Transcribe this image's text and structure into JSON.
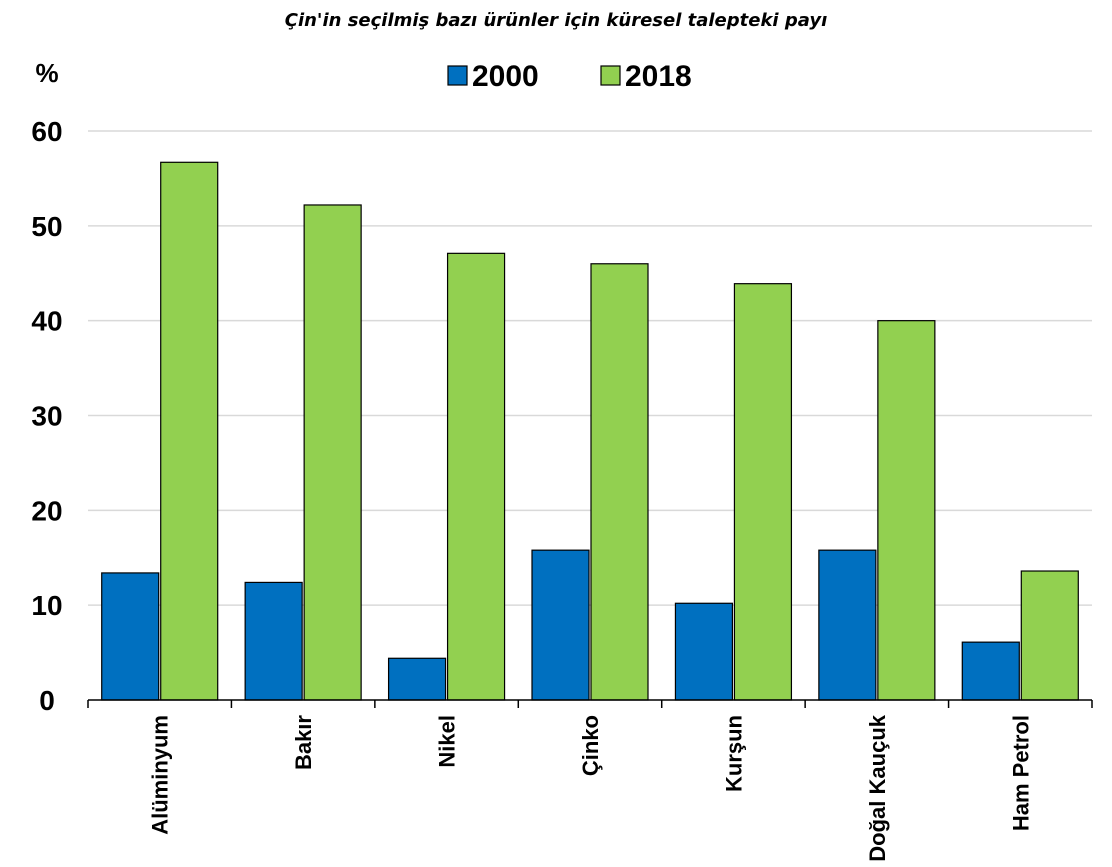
{
  "chart_data": {
    "type": "bar",
    "title": "Çin'in seçilmiş bazı ürünler için küresel talepteki payı",
    "ylabel": "%",
    "xlabel": "",
    "ylim": [
      0,
      60
    ],
    "yticks": [
      "0",
      "10",
      "20",
      "30",
      "40",
      "50",
      "60"
    ],
    "grid": true,
    "legend_position": "top-center",
    "categories": [
      "Alüminyum",
      "Bakır",
      "Nikel",
      "Çinko",
      "Kurşun",
      "Doğal Kauçuk",
      "Ham Petrol"
    ],
    "series": [
      {
        "name": "2000",
        "color": "#0070c0",
        "values": [
          13.4,
          12.4,
          4.4,
          15.8,
          10.2,
          15.8,
          6.1
        ]
      },
      {
        "name": "2018",
        "color": "#92d050",
        "values": [
          56.7,
          52.2,
          47.1,
          46.0,
          43.9,
          40.0,
          13.6
        ]
      }
    ]
  }
}
